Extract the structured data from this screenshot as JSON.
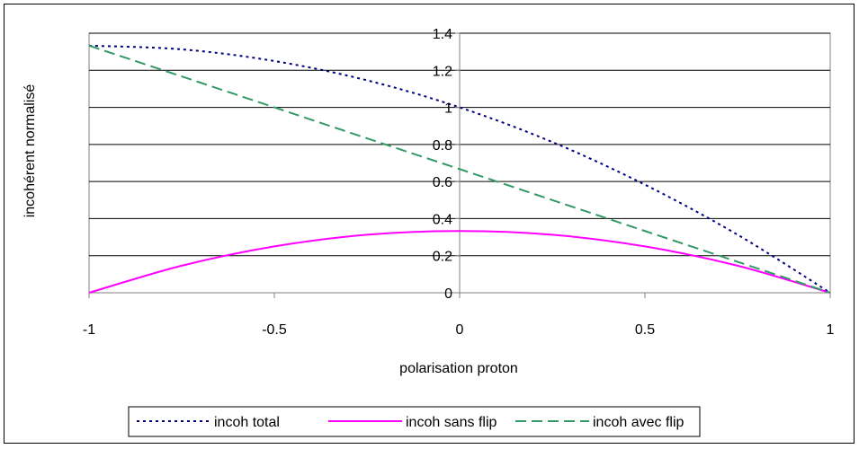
{
  "chart_data": {
    "type": "line",
    "title": "",
    "xlabel": "polarisation proton",
    "ylabel": "incohérent normalisé",
    "xlim": [
      -1,
      1
    ],
    "ylim": [
      0,
      1.4
    ],
    "x_ticks": [
      -1,
      -0.5,
      0,
      0.5,
      1
    ],
    "x_tick_labels": [
      "-1",
      "-0.5",
      "0",
      "0.5",
      "1"
    ],
    "y_ticks": [
      0,
      0.2,
      0.4,
      0.6,
      0.8,
      1,
      1.2,
      1.4
    ],
    "y_tick_labels": [
      "0",
      "0.2",
      "0.4",
      "0.6",
      "0.8",
      "1",
      "1.2",
      "1.4"
    ],
    "grid": "horizontal",
    "legend_position": "bottom",
    "x": [
      -1,
      -0.75,
      -0.5,
      -0.25,
      0,
      0.25,
      0.5,
      0.75,
      1
    ],
    "series": [
      {
        "name": "incoh total",
        "color": "#000080",
        "style": "dotted",
        "values": [
          1.333,
          1.313,
          1.25,
          1.146,
          1.0,
          0.813,
          0.583,
          0.313,
          0.0
        ]
      },
      {
        "name": "incoh sans flip",
        "color": "#ff00ff",
        "style": "solid",
        "values": [
          0.0,
          0.146,
          0.25,
          0.313,
          0.333,
          0.313,
          0.25,
          0.146,
          0.0
        ]
      },
      {
        "name": "incoh avec flip",
        "color": "#339966",
        "style": "dashed",
        "values": [
          1.333,
          1.167,
          1.0,
          0.833,
          0.667,
          0.5,
          0.333,
          0.167,
          0.0
        ]
      }
    ]
  }
}
